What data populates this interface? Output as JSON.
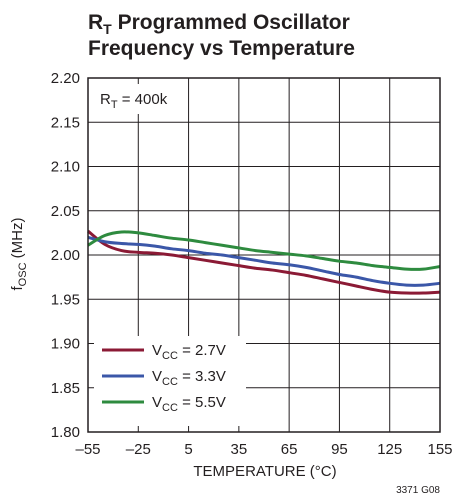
{
  "chart_data": {
    "type": "line",
    "title": {
      "line1_main": "R",
      "line1_sub": "T",
      "line1_rest": " Programmed Oscillator",
      "line2": "Frequency vs Temperature"
    },
    "xlabel": "TEMPERATURE (°C)",
    "ylabel": {
      "main": "f",
      "sub": "OSC",
      "rest": " (MHz)"
    },
    "xlim": [
      -55,
      155
    ],
    "ylim": [
      1.8,
      2.2
    ],
    "x_ticks": [
      "–55",
      "–25",
      "5",
      "35",
      "65",
      "95",
      "125",
      "155"
    ],
    "x_tick_values": [
      -55,
      -25,
      5,
      35,
      65,
      95,
      125,
      155
    ],
    "y_ticks": [
      "1.80",
      "1.85",
      "1.90",
      "1.95",
      "2.00",
      "2.05",
      "2.10",
      "2.15",
      "2.20"
    ],
    "y_tick_values": [
      1.8,
      1.85,
      1.9,
      1.95,
      2.0,
      2.05,
      2.1,
      2.15,
      2.2
    ],
    "grid": true,
    "annotation": {
      "main": "R",
      "sub": "T",
      "rest": "  = 400k"
    },
    "legend_position": "bottom-left",
    "series": [
      {
        "name": "V",
        "name_sub": "CC",
        "name_rest": " = 2.7V",
        "color": "#8b1a35",
        "x": [
          -55,
          -45,
          -35,
          -25,
          -15,
          -5,
          5,
          15,
          25,
          35,
          45,
          55,
          65,
          75,
          85,
          95,
          105,
          115,
          125,
          135,
          145,
          155
        ],
        "y": [
          2.027,
          2.012,
          2.005,
          2.003,
          2.002,
          2.0,
          1.997,
          1.994,
          1.991,
          1.988,
          1.985,
          1.983,
          1.98,
          1.977,
          1.973,
          1.969,
          1.965,
          1.961,
          1.958,
          1.957,
          1.957,
          1.958
        ]
      },
      {
        "name": "V",
        "name_sub": "CC",
        "name_rest": " = 3.3V",
        "color": "#3b57a8",
        "x": [
          -55,
          -45,
          -35,
          -25,
          -15,
          -5,
          5,
          15,
          25,
          35,
          45,
          55,
          65,
          75,
          85,
          95,
          105,
          115,
          125,
          135,
          145,
          155
        ],
        "y": [
          2.02,
          2.015,
          2.013,
          2.012,
          2.01,
          2.007,
          2.005,
          2.002,
          2.0,
          1.997,
          1.994,
          1.991,
          1.989,
          1.986,
          1.982,
          1.978,
          1.975,
          1.971,
          1.968,
          1.966,
          1.966,
          1.968
        ]
      },
      {
        "name": "V",
        "name_sub": "CC",
        "name_rest": " = 5.5V",
        "color": "#2e8b3f",
        "x": [
          -55,
          -45,
          -35,
          -25,
          -15,
          -5,
          5,
          15,
          25,
          35,
          45,
          55,
          65,
          75,
          85,
          95,
          105,
          115,
          125,
          135,
          145,
          155
        ],
        "y": [
          2.011,
          2.022,
          2.026,
          2.025,
          2.022,
          2.019,
          2.017,
          2.014,
          2.011,
          2.008,
          2.005,
          2.003,
          2.001,
          1.999,
          1.996,
          1.993,
          1.991,
          1.988,
          1.986,
          1.984,
          1.984,
          1.987
        ]
      }
    ],
    "figure_number": "3371 G08"
  }
}
